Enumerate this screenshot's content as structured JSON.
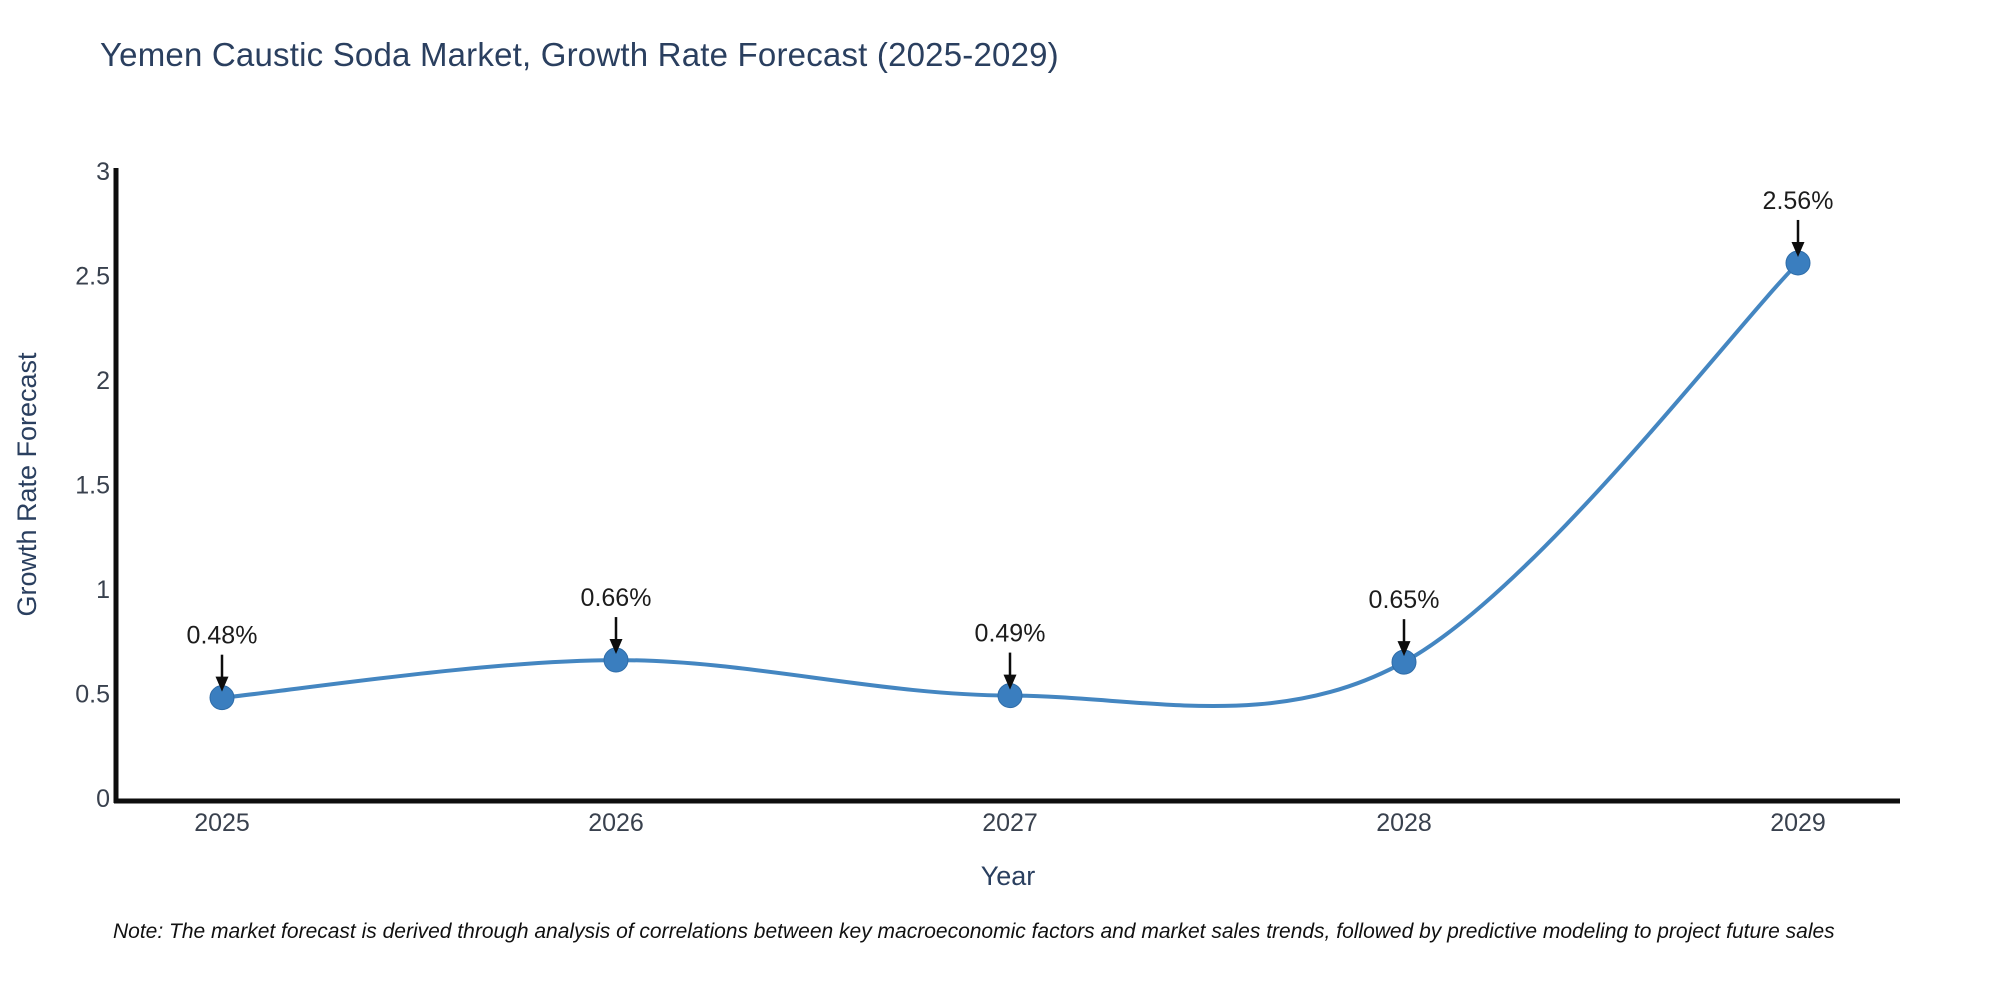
{
  "note": "Note: The market forecast is derived through analysis of correlations between key macroeconomic factors and market sales trends, followed by predictive modeling to project future sales",
  "chart_data": {
    "type": "line",
    "title": "Yemen Caustic Soda Market, Growth Rate Forecast (2025-2029)",
    "xlabel": "Year",
    "ylabel": "Growth Rate Forecast",
    "x": [
      2025,
      2026,
      2027,
      2028,
      2029
    ],
    "xtick_labels": [
      "2025",
      "2026",
      "2027",
      "2028",
      "2029"
    ],
    "values": [
      0.48,
      0.66,
      0.49,
      0.65,
      2.56
    ],
    "labels": [
      "0.48%",
      "0.66%",
      "0.49%",
      "0.65%",
      "2.56%"
    ],
    "ylim": [
      0,
      3
    ],
    "yticks": [
      0,
      0.5,
      1,
      1.5,
      2,
      2.5,
      3
    ],
    "ytick_labels": [
      "0",
      "0.5",
      "1",
      "1.5",
      "2",
      "2.5",
      "3"
    ],
    "grid": false,
    "legend": "none",
    "line_shape": "spline",
    "annotation_style": "down-arrow",
    "colors": {
      "line": "#4486c1",
      "marker": "#3a7ebf",
      "marker_edge": "#2e6ca8",
      "axis": "#0e0e0e",
      "arrow": "#0d0d0d",
      "title_text": "#2a3f5f",
      "axis_label_text": "#2a3f5f",
      "tick_text": "#39414e",
      "annotation_text": "#1c1c1c",
      "note_text": "#101010"
    }
  }
}
